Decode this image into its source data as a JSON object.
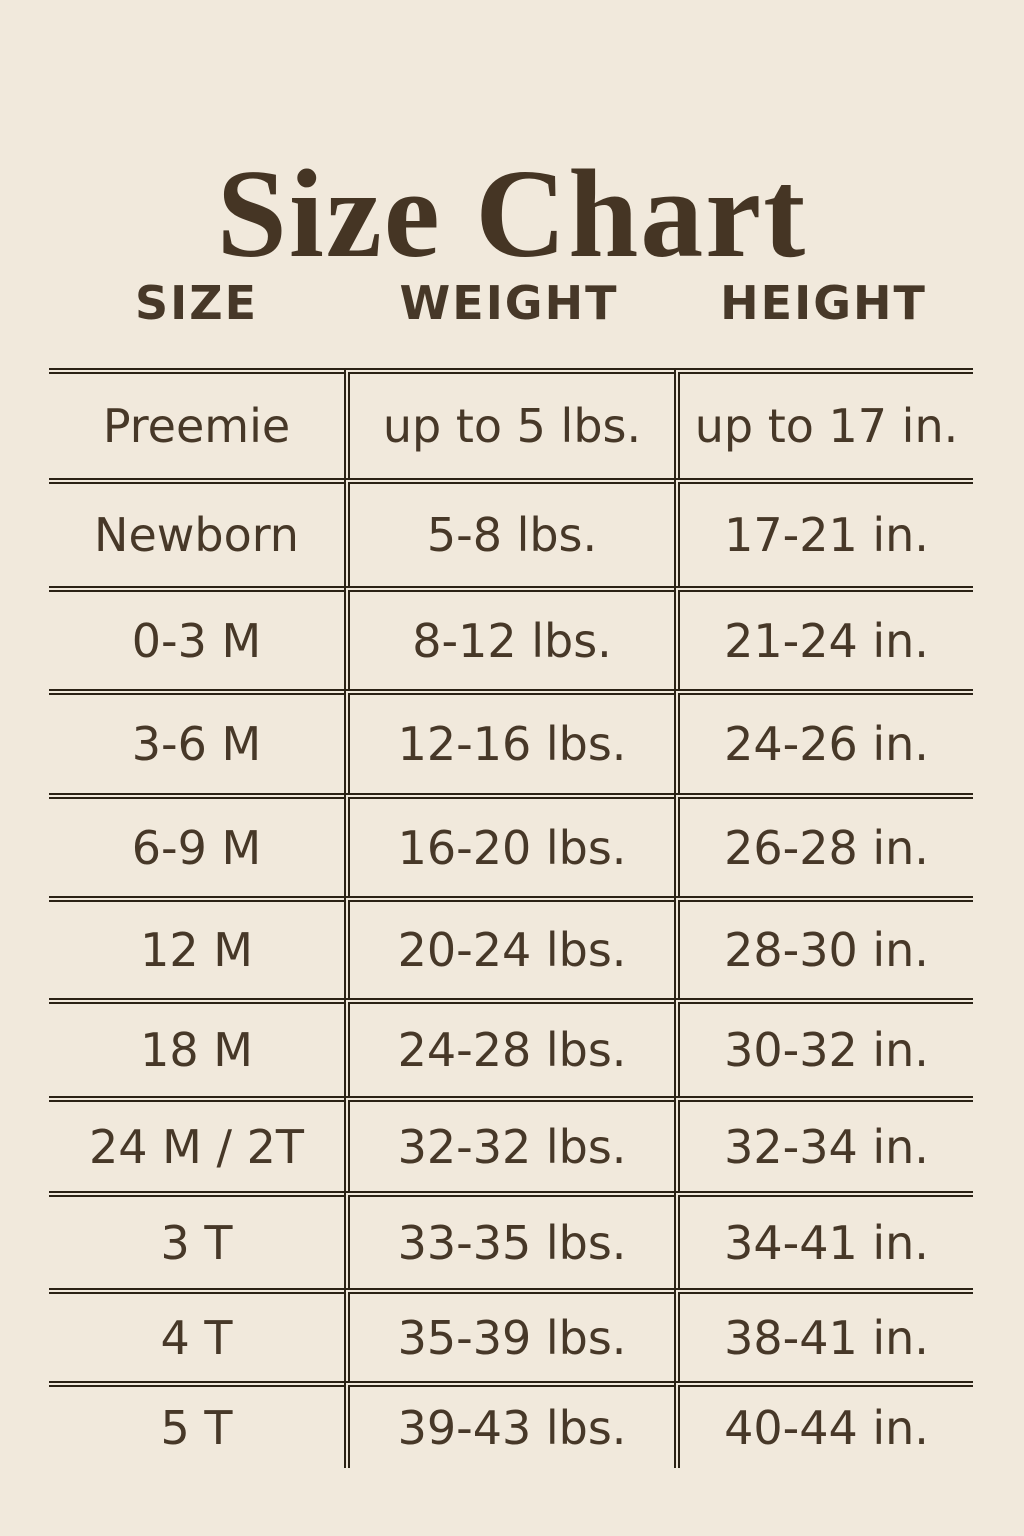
{
  "page": {
    "title": "Size Chart"
  },
  "chart_data": {
    "type": "table",
    "title": "Size Chart",
    "columns": [
      "SIZE",
      "WEIGHT",
      "HEIGHT"
    ],
    "rows": [
      [
        "Preemie",
        "up to 5 lbs.",
        "up to 17 in."
      ],
      [
        "Newborn",
        "5-8 lbs.",
        "17-21 in."
      ],
      [
        "0-3 M",
        "8-12 lbs.",
        "21-24 in."
      ],
      [
        "3-6 M",
        "12-16 lbs.",
        "24-26 in."
      ],
      [
        "6-9 M",
        "16-20 lbs.",
        "26-28 in."
      ],
      [
        "12 M",
        "20-24 lbs.",
        "28-30 in."
      ],
      [
        "18 M",
        "24-28 lbs.",
        "30-32 in."
      ],
      [
        "24 M / 2T",
        "32-32 lbs.",
        "32-34 in."
      ],
      [
        "3 T",
        "33-35 lbs.",
        "34-41 in."
      ],
      [
        "4 T",
        "35-39 lbs.",
        "38-41 in."
      ],
      [
        "5 T",
        "39-43 lbs.",
        "40-44 in."
      ]
    ]
  },
  "colors": {
    "background": "#f1e9dc",
    "title": "#453524",
    "text": "#473828",
    "line": "#2b2215"
  }
}
